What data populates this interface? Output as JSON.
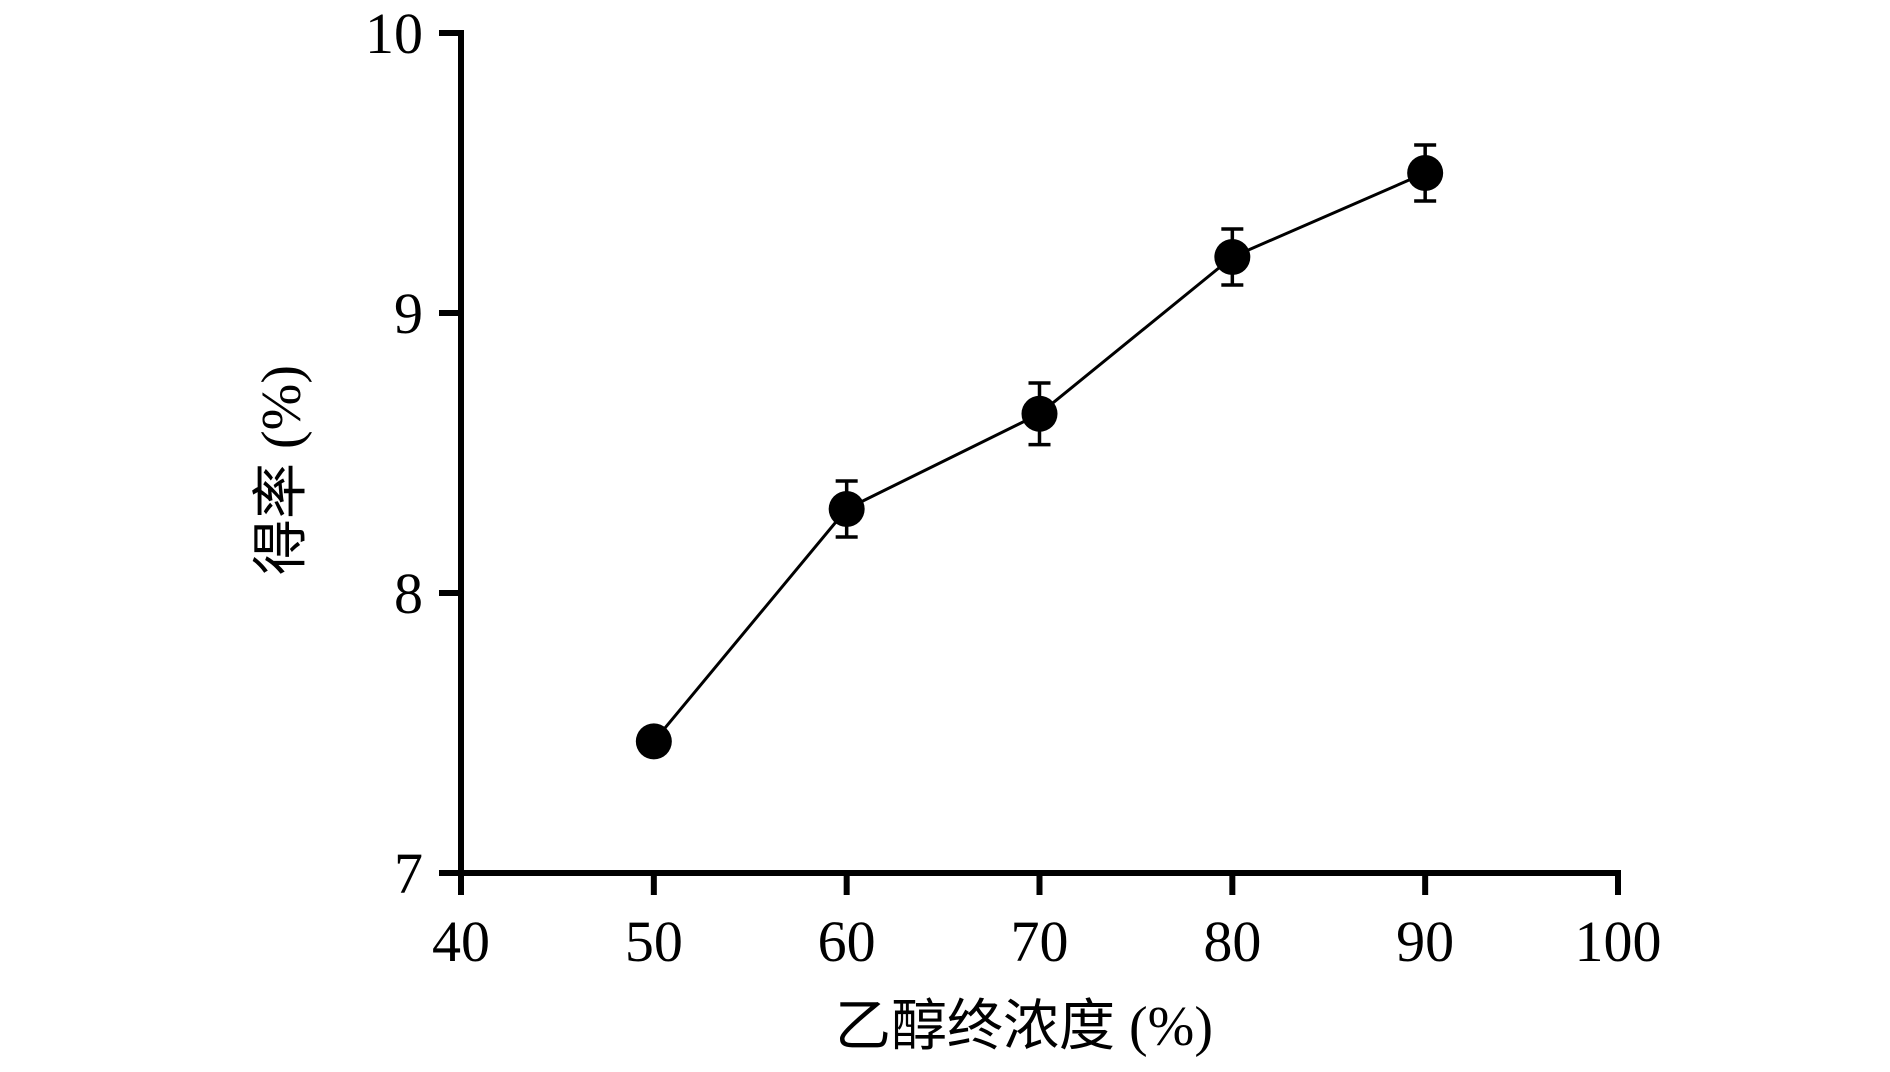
{
  "chart_data": {
    "type": "line",
    "x_label": "乙醇终浓度 (%)",
    "y_label": "得率 (%)",
    "x": [
      50,
      60,
      70,
      80,
      90
    ],
    "series": [
      {
        "color": "#000000",
        "values": [
          7.47,
          8.3,
          8.64,
          9.2,
          9.5
        ],
        "errors": [
          null,
          0.1,
          0.11,
          0.1,
          0.1
        ]
      }
    ],
    "xlim": [
      40,
      100
    ],
    "xticks": [
      40,
      50,
      60,
      70,
      80,
      90,
      100
    ],
    "ylim": [
      7,
      10
    ],
    "yticks": [
      7,
      8,
      9,
      10
    ],
    "grid": false
  }
}
